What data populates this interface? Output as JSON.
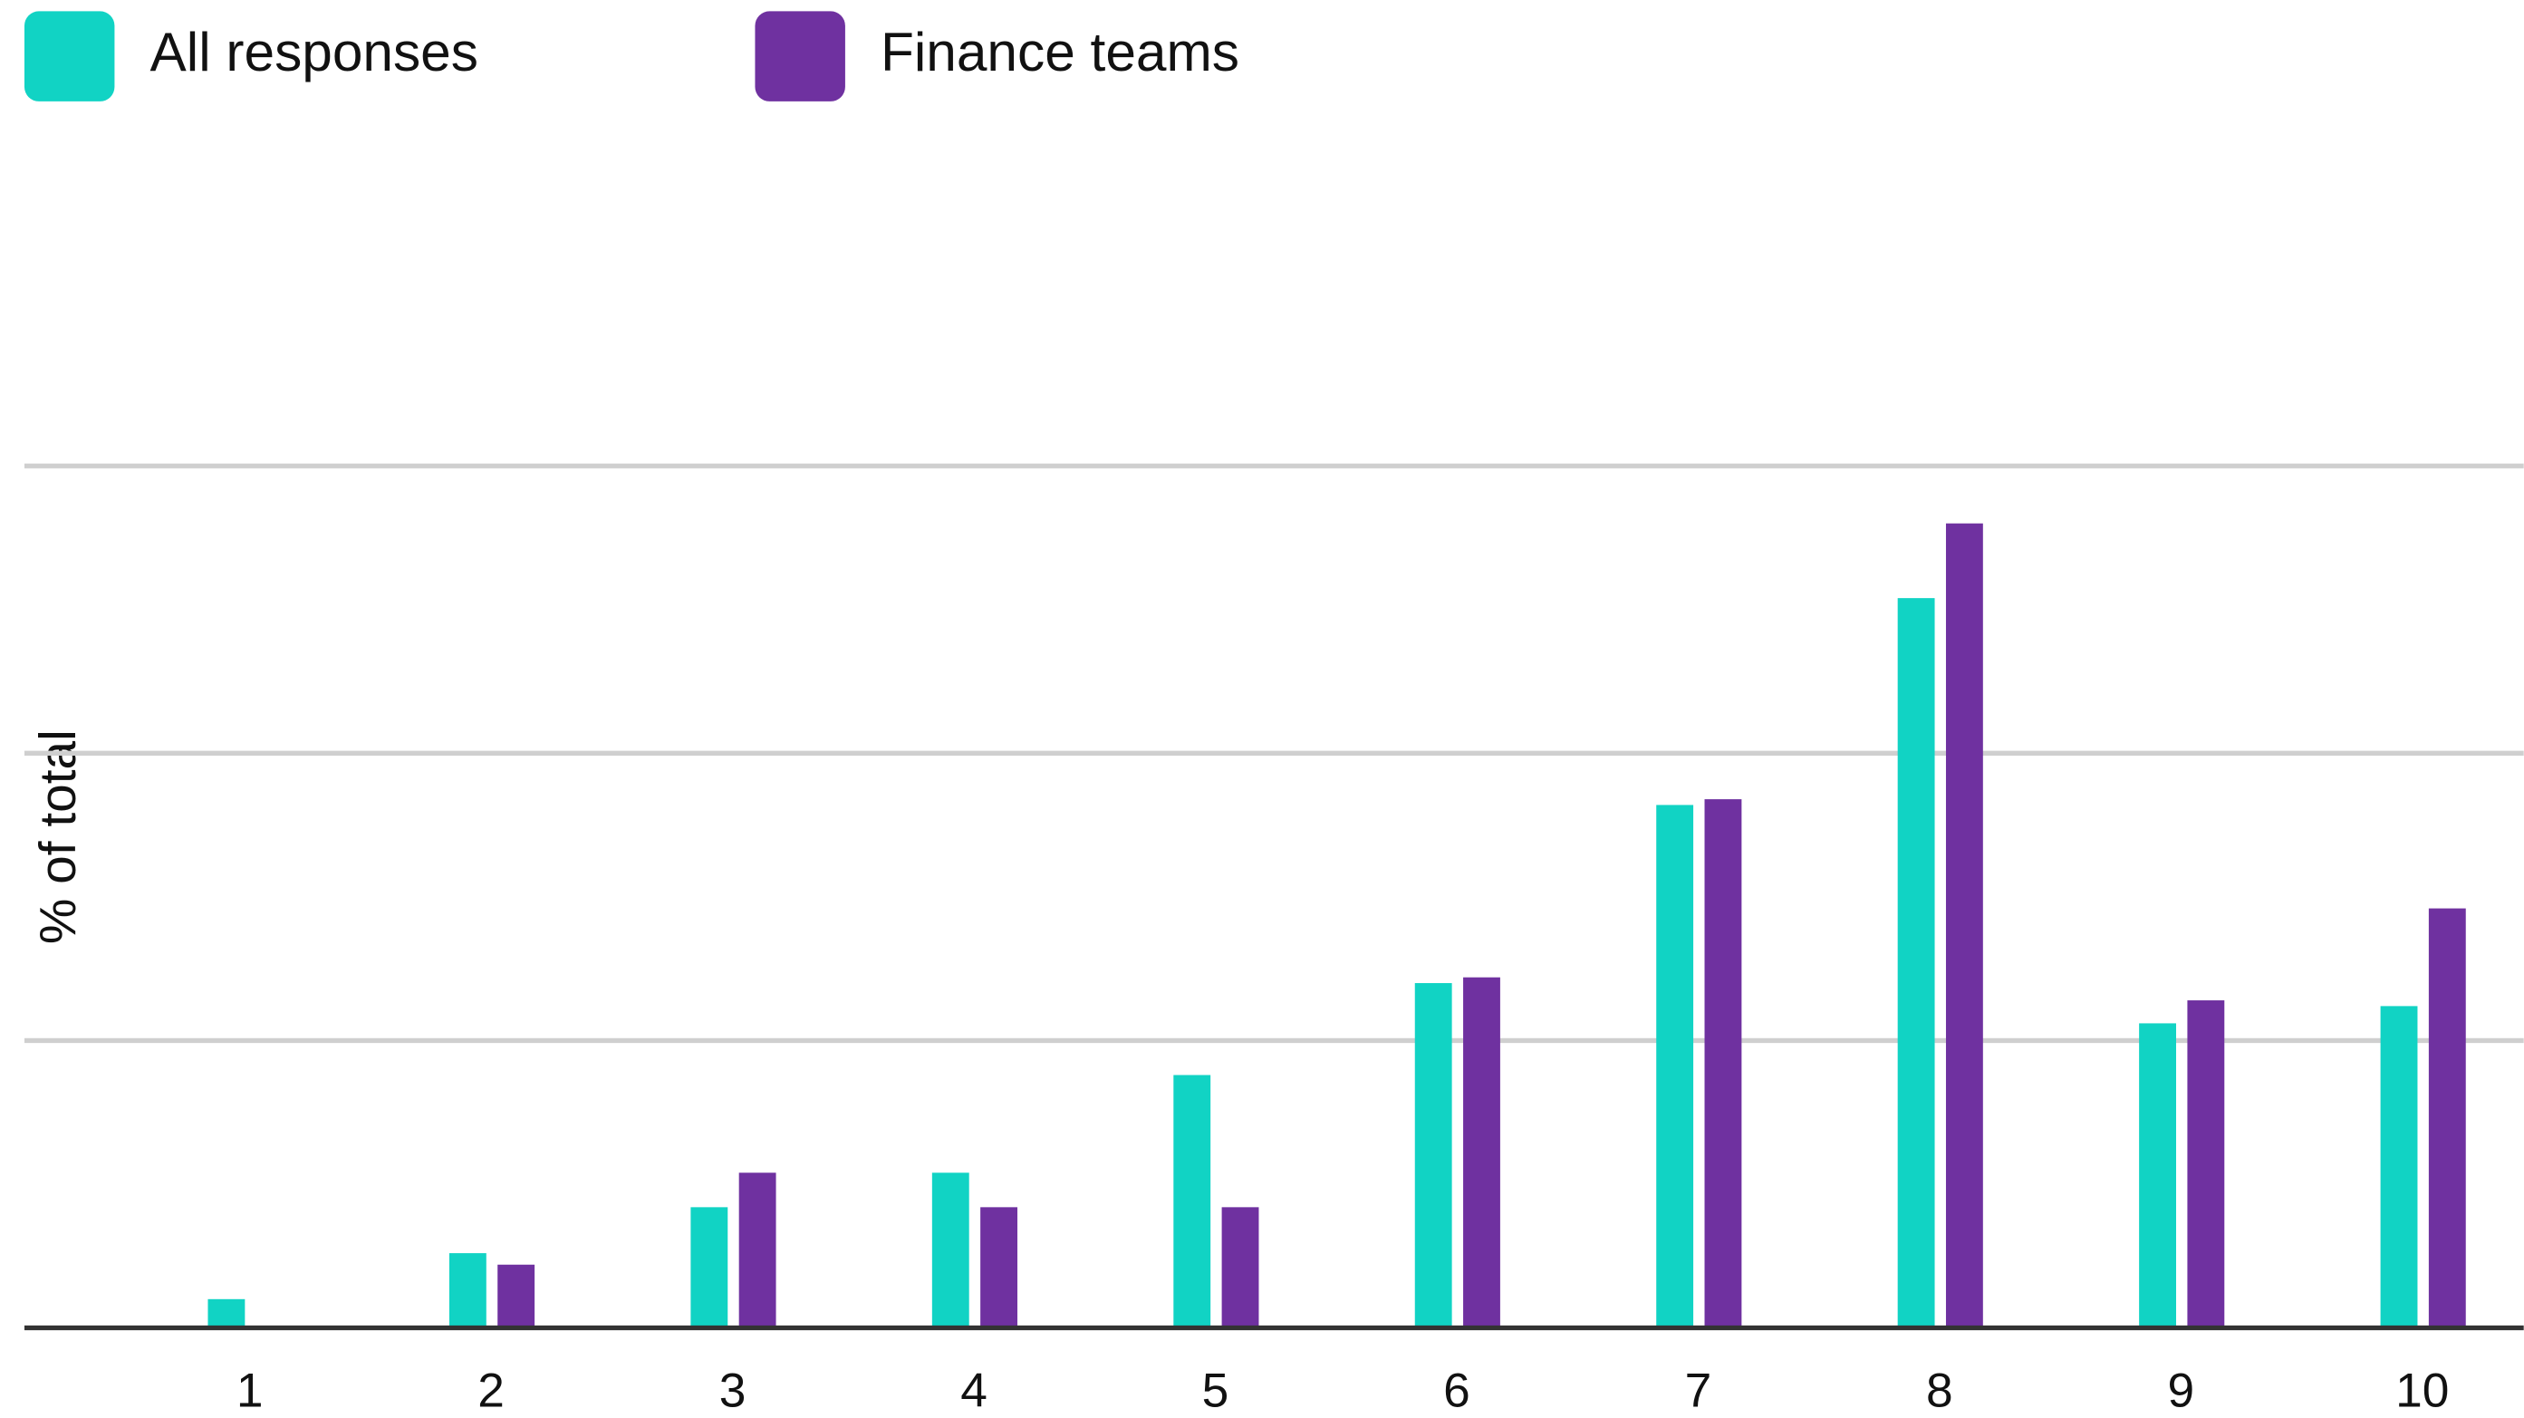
{
  "chart_data": {
    "type": "bar",
    "y_label": "% of total",
    "categories": [
      "1",
      "2",
      "3",
      "4",
      "5",
      "6",
      "7",
      "8",
      "9",
      "10"
    ],
    "series": [
      {
        "name": "All responses",
        "color": "#11d3c4",
        "values": [
          0.5,
          1.3,
          2.1,
          2.7,
          4.4,
          6.0,
          9.1,
          12.7,
          5.3,
          5.6
        ]
      },
      {
        "name": "Finance teams",
        "color": "#6f31a0",
        "values": [
          0,
          1.1,
          2.7,
          2.1,
          2.1,
          6.1,
          9.2,
          14.0,
          5.7,
          7.3
        ]
      }
    ],
    "ylim": [
      0,
      20
    ],
    "yticks": [
      0,
      5,
      10,
      15
    ],
    "grid": true
  }
}
